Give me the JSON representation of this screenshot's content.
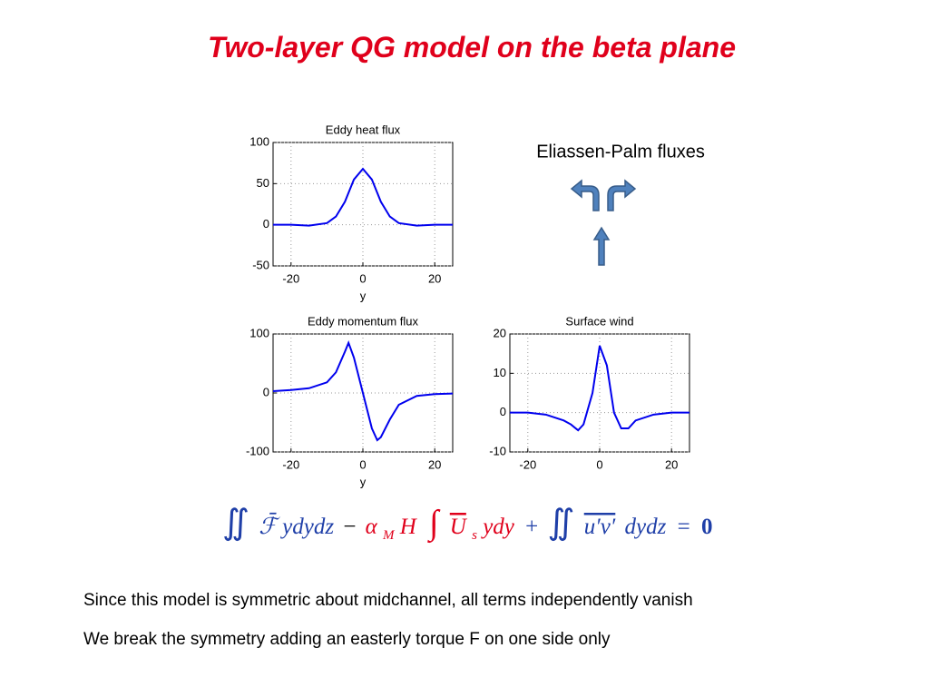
{
  "title": "Two-layer QG model on the beta plane",
  "ep_label": "Eliassen-Palm fluxes",
  "chart_data": [
    {
      "type": "line",
      "title": "Eddy heat flux",
      "xlabel": "y",
      "grid": true,
      "xlim": [
        -25,
        25
      ],
      "xticks": [
        -20,
        0,
        20
      ],
      "ylim": [
        -50,
        100
      ],
      "yticks": [
        -50,
        0,
        50,
        100
      ],
      "x": [
        -25,
        -20,
        -15,
        -10,
        -7.5,
        -5,
        -2.5,
        0,
        2.5,
        5,
        7.5,
        10,
        15,
        20,
        25
      ],
      "series": [
        {
          "color": "#0000ee",
          "values": [
            0,
            0,
            -1,
            2,
            10,
            28,
            55,
            68,
            55,
            28,
            10,
            2,
            -1,
            0,
            0
          ]
        }
      ]
    },
    {
      "type": "line",
      "title": "Eddy momentum flux",
      "xlabel": "y",
      "grid": true,
      "xlim": [
        -25,
        25
      ],
      "xticks": [
        -20,
        0,
        20
      ],
      "ylim": [
        -100,
        100
      ],
      "yticks": [
        -100,
        0,
        100
      ],
      "x": [
        -25,
        -20,
        -15,
        -10,
        -7.5,
        -5,
        -4,
        -2.5,
        0,
        2.5,
        4,
        5,
        7.5,
        10,
        15,
        20,
        25
      ],
      "series": [
        {
          "color": "#0000ee",
          "values": [
            3,
            5,
            8,
            18,
            35,
            70,
            85,
            60,
            0,
            -60,
            -80,
            -75,
            -45,
            -20,
            -5,
            -2,
            -1
          ]
        }
      ]
    },
    {
      "type": "line",
      "title": "Surface wind",
      "grid": true,
      "xlim": [
        -25,
        25
      ],
      "xticks": [
        -20,
        0,
        20
      ],
      "ylim": [
        -10,
        20
      ],
      "yticks": [
        -10,
        0,
        10,
        20
      ],
      "x": [
        -25,
        -20,
        -15,
        -10,
        -8,
        -6,
        -4.5,
        -2,
        0,
        2,
        4,
        6,
        8,
        10,
        15,
        20,
        25
      ],
      "series": [
        {
          "color": "#0000ee",
          "values": [
            0,
            0,
            -0.5,
            -2,
            -3,
            -4.5,
            -3,
            5,
            17,
            12,
            0,
            -4,
            -4,
            -2,
            -0.5,
            0,
            0
          ]
        }
      ]
    }
  ],
  "equation": [
    "∬",
    "ℱ̄",
    "ydydz",
    "−",
    "α",
    "M",
    "H",
    "∫",
    "U",
    "s",
    "ydy",
    "+",
    "∬",
    "u′v′",
    "dydz",
    "=",
    "0"
  ],
  "notes": [
    "Since this model is symmetric about midchannel, all terms independently vanish",
    "We break the symmetry adding an easterly torque F on one side only"
  ]
}
